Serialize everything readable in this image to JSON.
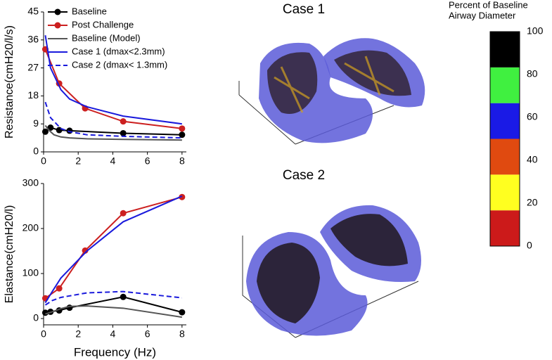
{
  "chart_data": [
    {
      "type": "line",
      "ylabel": "Resistance(cmH20/l/s)",
      "xlim": [
        0,
        8.25
      ],
      "xticks": [
        0,
        2,
        4,
        6,
        8
      ],
      "ylim": [
        0,
        45
      ],
      "yticks": [
        0,
        9,
        18,
        27,
        36,
        45
      ],
      "legend": "top-left",
      "series": [
        {
          "name": "Baseline",
          "color": "#000000",
          "marker": true,
          "x": [
            0.1,
            0.4,
            0.9,
            1.5,
            4.6,
            8
          ],
          "values": [
            6.5,
            7.8,
            7,
            6.8,
            6,
            5.5
          ]
        },
        {
          "name": "Post Challenge",
          "color": "#cc2020",
          "marker": true,
          "x": [
            0.1,
            0.9,
            2.4,
            4.6,
            8
          ],
          "values": [
            33,
            22,
            14,
            9.8,
            7.5
          ]
        },
        {
          "name": "Baseline (Model)",
          "color": "#555555",
          "x": [
            0.1,
            0.3,
            0.6,
            1,
            1.5,
            2.5,
            4.6,
            8
          ],
          "values": [
            8.5,
            7,
            5.5,
            4.8,
            4.5,
            4.2,
            4,
            3.8
          ]
        },
        {
          "name": "Case 1 (dmax<2.3mm)",
          "color": "#1a1adc",
          "x": [
            0.1,
            0.4,
            1,
            1.5,
            2.5,
            4.6,
            8
          ],
          "values": [
            37.5,
            27,
            20,
            17,
            14.5,
            11.5,
            9
          ]
        },
        {
          "name": "Case 2 (dmax< 1.3mm)",
          "color": "#1a1adc",
          "dashed": true,
          "x": [
            0.1,
            0.4,
            1,
            1.5,
            2.5,
            4.6,
            8
          ],
          "values": [
            16,
            11,
            7.5,
            6.5,
            5.5,
            5,
            4.5
          ]
        }
      ]
    },
    {
      "type": "line",
      "ylabel": "Elastance(cmH20/l)",
      "xlabel": "Frequency (Hz)",
      "xlim": [
        0,
        8.25
      ],
      "xticks": [
        0,
        2,
        4,
        6,
        8
      ],
      "ylim": [
        -14,
        300
      ],
      "yticks": [
        0,
        100,
        200,
        300
      ],
      "series": [
        {
          "color": "#000000",
          "marker": true,
          "x": [
            0.1,
            0.4,
            0.9,
            1.5,
            4.6,
            8
          ],
          "values": [
            13,
            15,
            18,
            24,
            48,
            14
          ]
        },
        {
          "color": "#cc2020",
          "marker": true,
          "x": [
            0.1,
            0.9,
            2.4,
            4.6,
            8
          ],
          "values": [
            45,
            67,
            151,
            234,
            270
          ]
        },
        {
          "color": "#555555",
          "x": [
            0.1,
            0.5,
            1,
            1.5,
            2.5,
            4.6,
            8
          ],
          "values": [
            10,
            15,
            22,
            27,
            28,
            23,
            3
          ]
        },
        {
          "color": "#1a1adc",
          "x": [
            0.1,
            0.5,
            1,
            2.5,
            4.6,
            8
          ],
          "values": [
            35,
            60,
            90,
            150,
            215,
            272
          ]
        },
        {
          "color": "#1a1adc",
          "dashed": true,
          "x": [
            0.1,
            0.5,
            1,
            2.5,
            4.6,
            8
          ],
          "values": [
            30,
            40,
            47,
            57,
            60,
            46
          ]
        }
      ]
    }
  ],
  "cases": [
    "Case 1",
    "Case 2"
  ],
  "colorbar": {
    "title": [
      "Percent of Baseline",
      "Airway Diameter"
    ],
    "ticks": [
      0,
      20,
      40,
      60,
      80,
      100
    ],
    "colors": [
      "#cc1a1a",
      "#ffff20",
      "#e04a10",
      "#1a1ae6",
      "#40f040",
      "#000000"
    ]
  }
}
